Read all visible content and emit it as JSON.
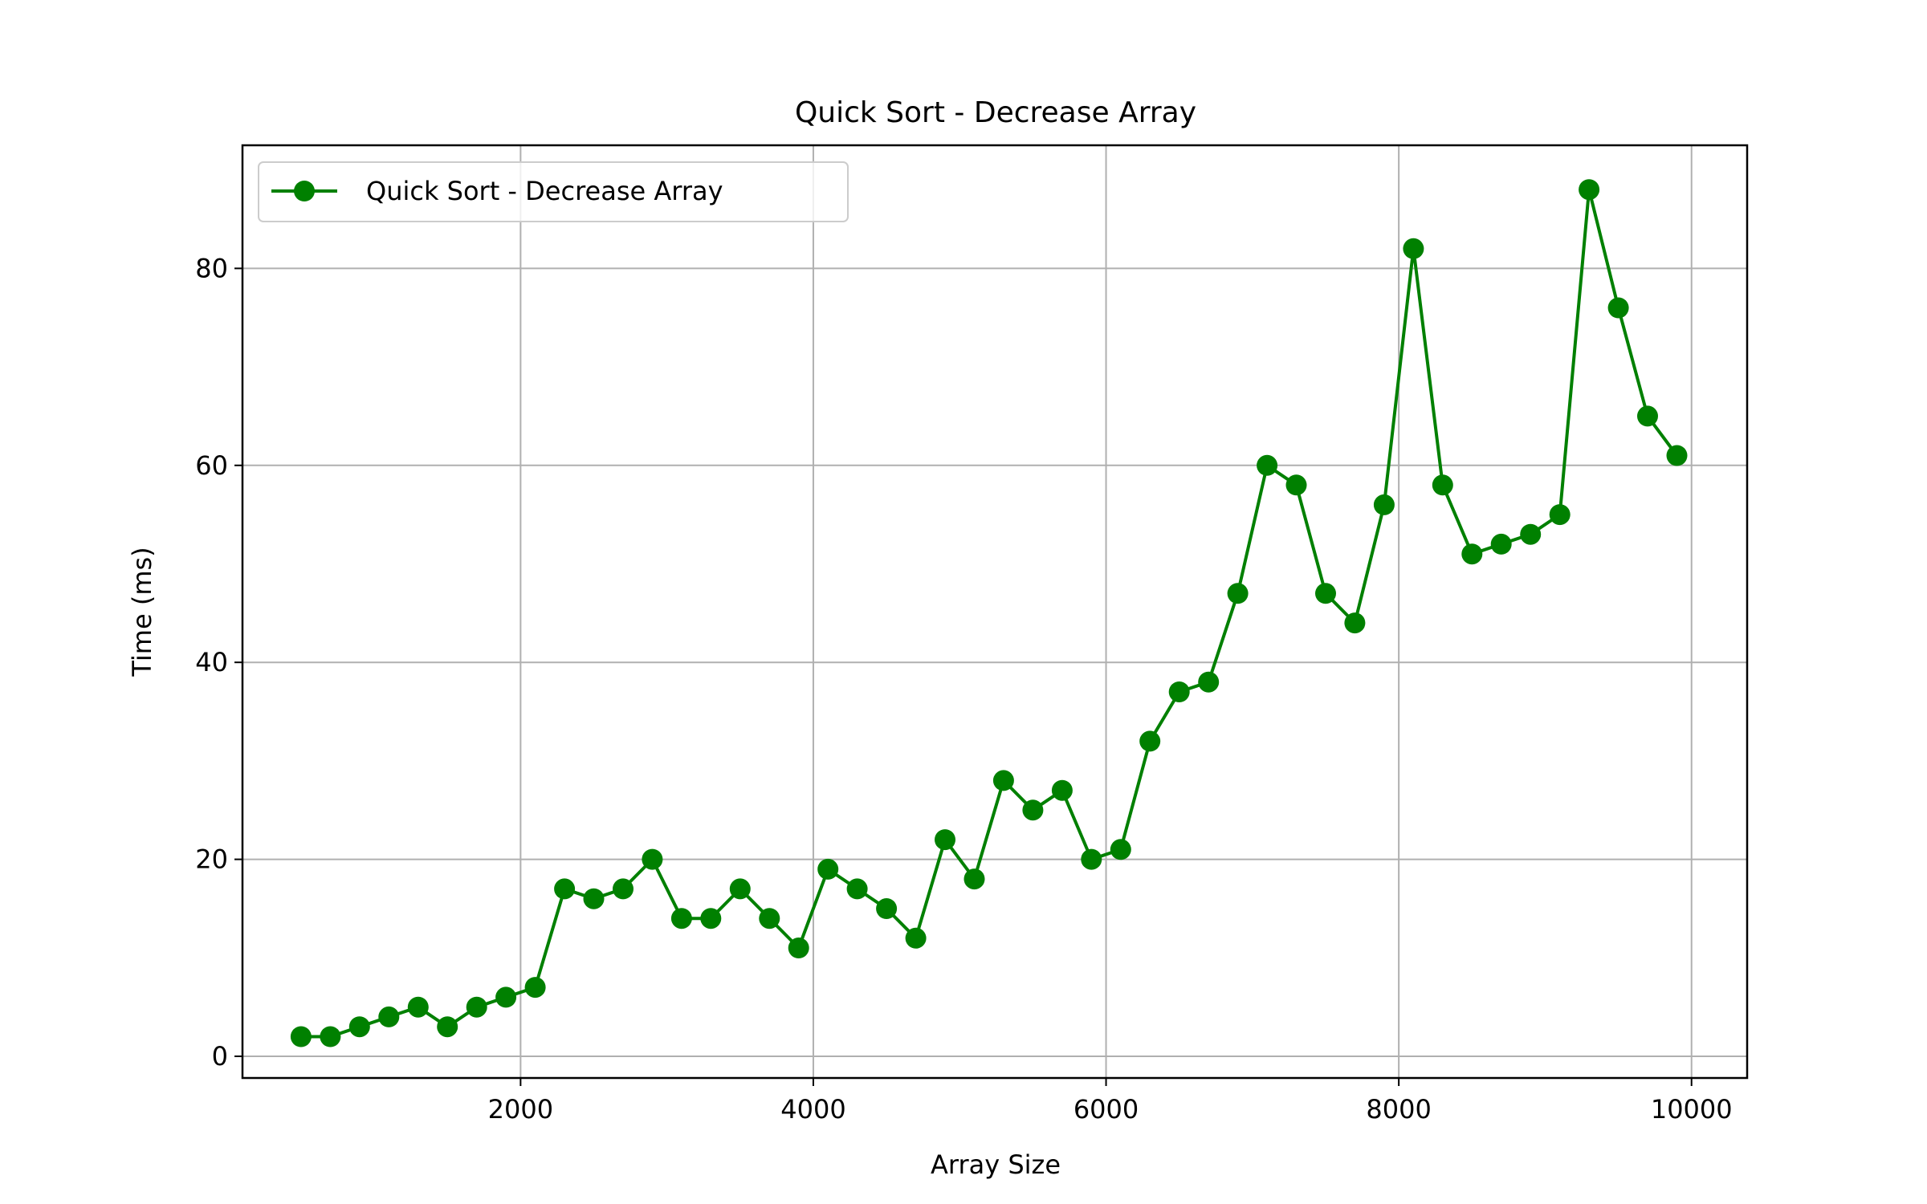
{
  "chart_data": {
    "type": "line",
    "title": "Quick Sort - Decrease Array",
    "xlabel": "Array Size",
    "ylabel": "Time (ms)",
    "xlim": [
      100,
      10380
    ],
    "ylim": [
      -2.2,
      92.5
    ],
    "xticks": [
      2000,
      4000,
      6000,
      8000,
      10000
    ],
    "yticks": [
      0,
      20,
      40,
      60,
      80
    ],
    "grid": true,
    "legend_position": "top-left",
    "color": "#008000",
    "series": [
      {
        "name": "Quick Sort - Decrease Array",
        "x": [
          500,
          700,
          900,
          1100,
          1300,
          1500,
          1700,
          1900,
          2100,
          2300,
          2500,
          2700,
          2900,
          3100,
          3300,
          3500,
          3700,
          3900,
          4100,
          4300,
          4500,
          4700,
          4900,
          5100,
          5300,
          5500,
          5700,
          5900,
          6100,
          6300,
          6500,
          6700,
          6900,
          7100,
          7300,
          7500,
          7700,
          7900,
          8100,
          8300,
          8500,
          8700,
          8900,
          9100,
          9300,
          9500,
          9700,
          9900
        ],
        "y": [
          2,
          2,
          3,
          4,
          5,
          3,
          5,
          6,
          7,
          17,
          16,
          17,
          20,
          14,
          14,
          17,
          14,
          11,
          19,
          17,
          15,
          12,
          22,
          18,
          28,
          25,
          27,
          20,
          21,
          32,
          37,
          38,
          47,
          60,
          58,
          47,
          44,
          56,
          82,
          58,
          51,
          52,
          53,
          55,
          88,
          76,
          65,
          61
        ]
      }
    ]
  }
}
